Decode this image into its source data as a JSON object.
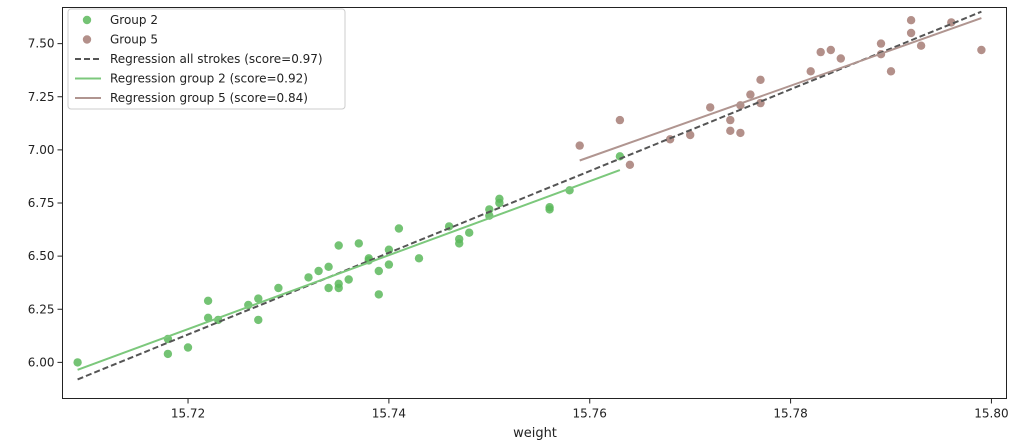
{
  "chart_data": {
    "type": "scatter",
    "title": "",
    "xlabel": "weight",
    "ylabel": "",
    "xlim": [
      15.7075,
      15.8015
    ],
    "ylim": [
      5.83,
      7.67
    ],
    "x_ticks": [
      15.72,
      15.74,
      15.76,
      15.78,
      15.8
    ],
    "x_tick_labels": [
      "15.72",
      "15.74",
      "15.76",
      "15.78",
      "15.80"
    ],
    "y_ticks": [
      6.0,
      6.25,
      6.5,
      6.75,
      7.0,
      7.25,
      7.5
    ],
    "y_tick_labels": [
      "6.00",
      "6.25",
      "6.50",
      "6.75",
      "7.00",
      "7.25",
      "7.50"
    ],
    "grid": false,
    "legend_placement": "top-left",
    "series": [
      {
        "name": "Group 2",
        "kind": "scatter",
        "color": "#5cb85c",
        "points": [
          [
            15.709,
            6.0
          ],
          [
            15.718,
            6.11
          ],
          [
            15.718,
            6.04
          ],
          [
            15.72,
            6.07
          ],
          [
            15.722,
            6.29
          ],
          [
            15.722,
            6.21
          ],
          [
            15.723,
            6.2
          ],
          [
            15.726,
            6.27
          ],
          [
            15.727,
            6.3
          ],
          [
            15.727,
            6.2
          ],
          [
            15.729,
            6.35
          ],
          [
            15.732,
            6.4
          ],
          [
            15.733,
            6.43
          ],
          [
            15.734,
            6.45
          ],
          [
            15.734,
            6.35
          ],
          [
            15.735,
            6.55
          ],
          [
            15.735,
            6.37
          ],
          [
            15.735,
            6.35
          ],
          [
            15.736,
            6.39
          ],
          [
            15.737,
            6.56
          ],
          [
            15.738,
            6.49
          ],
          [
            15.738,
            6.48
          ],
          [
            15.739,
            6.43
          ],
          [
            15.739,
            6.32
          ],
          [
            15.74,
            6.53
          ],
          [
            15.74,
            6.46
          ],
          [
            15.741,
            6.63
          ],
          [
            15.743,
            6.49
          ],
          [
            15.746,
            6.64
          ],
          [
            15.747,
            6.58
          ],
          [
            15.747,
            6.56
          ],
          [
            15.748,
            6.61
          ],
          [
            15.75,
            6.72
          ],
          [
            15.75,
            6.69
          ],
          [
            15.751,
            6.77
          ],
          [
            15.751,
            6.75
          ],
          [
            15.756,
            6.73
          ],
          [
            15.756,
            6.72
          ],
          [
            15.758,
            6.81
          ],
          [
            15.763,
            6.97
          ]
        ]
      },
      {
        "name": "Group 5",
        "kind": "scatter",
        "color": "#a67c76",
        "points": [
          [
            15.759,
            7.02
          ],
          [
            15.763,
            7.14
          ],
          [
            15.764,
            6.93
          ],
          [
            15.768,
            7.05
          ],
          [
            15.77,
            7.07
          ],
          [
            15.772,
            7.2
          ],
          [
            15.774,
            7.14
          ],
          [
            15.774,
            7.09
          ],
          [
            15.775,
            7.21
          ],
          [
            15.775,
            7.08
          ],
          [
            15.776,
            7.26
          ],
          [
            15.777,
            7.33
          ],
          [
            15.777,
            7.22
          ],
          [
            15.782,
            7.37
          ],
          [
            15.783,
            7.46
          ],
          [
            15.784,
            7.47
          ],
          [
            15.785,
            7.43
          ],
          [
            15.789,
            7.5
          ],
          [
            15.789,
            7.45
          ],
          [
            15.79,
            7.37
          ],
          [
            15.792,
            7.61
          ],
          [
            15.792,
            7.55
          ],
          [
            15.793,
            7.49
          ],
          [
            15.796,
            7.6
          ],
          [
            15.799,
            7.47
          ]
        ]
      },
      {
        "name": "Regression all strokes (score=0.97)",
        "kind": "line",
        "color": "#555555",
        "dashed": true,
        "points": [
          [
            15.709,
            5.92
          ],
          [
            15.799,
            7.65
          ]
        ]
      },
      {
        "name": "Regression group 2 (score=0.92)",
        "kind": "line",
        "color": "#7cc87c",
        "dashed": false,
        "points": [
          [
            15.709,
            5.965
          ],
          [
            15.763,
            6.905
          ]
        ]
      },
      {
        "name": "Regression group 5 (score=0.84)",
        "kind": "line",
        "color": "#b09590",
        "dashed": false,
        "points": [
          [
            15.759,
            6.95
          ],
          [
            15.799,
            7.62
          ]
        ]
      }
    ]
  }
}
